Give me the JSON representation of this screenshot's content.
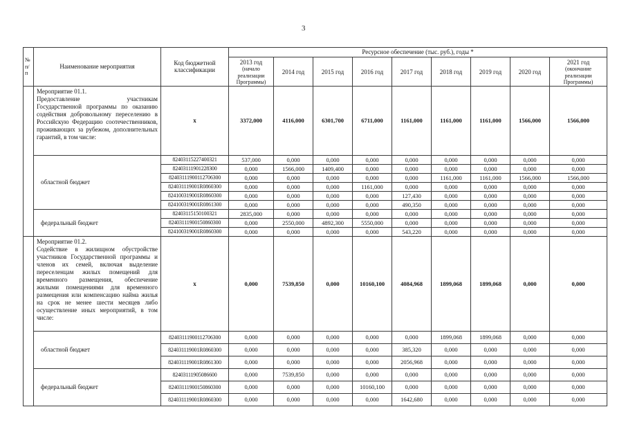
{
  "page": {
    "number": "3"
  },
  "table": {
    "header": {
      "col_num": "№ п/ п",
      "col_name": "Наименование мероприятия",
      "col_code": "Код бюджетной классификации",
      "resource_title": "Ресурсное обеспечение (тыс. руб.), годы *",
      "years": [
        {
          "label": "2013 год",
          "note": "(начало реализации Программы)"
        },
        {
          "label": "2014 год",
          "note": ""
        },
        {
          "label": "2015 год",
          "note": ""
        },
        {
          "label": "2016 год",
          "note": ""
        },
        {
          "label": "2017 год",
          "note": ""
        },
        {
          "label": "2018 год",
          "note": ""
        },
        {
          "label": "2019 год",
          "note": ""
        },
        {
          "label": "2020 год",
          "note": ""
        },
        {
          "label": "2021 год",
          "note": "(окончание реализации Программы)"
        }
      ]
    },
    "sections": [
      {
        "title": "Мероприятие 01.1.",
        "description": "Предоставление участникам Государственной программы по оказанию содействия добровольному переселению в Российскую Федерацию соотечественников, проживающих за рубежом, дополнительных гарантий, в том числе:",
        "code": "х",
        "values": [
          "3372,000",
          "4116,000",
          "6301,700",
          "6711,000",
          "1161,000",
          "1161,000",
          "1161,000",
          "1566,000",
          "1566,000"
        ],
        "groups": [
          {
            "label": "областной бюджет",
            "rows": [
              {
                "code": "82403115227400321",
                "values": [
                  "537,000",
                  "0,000",
                  "0,000",
                  "0,000",
                  "0,000",
                  "0,000",
                  "0,000",
                  "0,000",
                  "0,000"
                ]
              },
              {
                "code": "82403111901228300",
                "values": [
                  "0,000",
                  "1566,000",
                  "1409,400",
                  "0,000",
                  "0,000",
                  "0,000",
                  "0,000",
                  "0,000",
                  "0,000"
                ]
              },
              {
                "code": "82403111900112706300",
                "values": [
                  "0,000",
                  "0,000",
                  "0,000",
                  "0,000",
                  "0,000",
                  "1161,000",
                  "1161,000",
                  "1566,000",
                  "1566,000"
                ]
              },
              {
                "code": "824031119001R0860300",
                "values": [
                  "0,000",
                  "0,000",
                  "0,000",
                  "1161,000",
                  "0,000",
                  "0,000",
                  "0,000",
                  "0,000",
                  "0,000"
                ]
              },
              {
                "code": "824100319001R0860300",
                "values": [
                  "0,000",
                  "0,000",
                  "0,000",
                  "0,000",
                  "127,430",
                  "0,000",
                  "0,000",
                  "0,000",
                  "0,000"
                ]
              },
              {
                "code": "824100319001R0861300",
                "values": [
                  "0,000",
                  "0,000",
                  "0,000",
                  "0,000",
                  "490,350",
                  "0,000",
                  "0,000",
                  "0,000",
                  "0,000"
                ]
              }
            ]
          },
          {
            "label": "федеральный бюджет",
            "rows": [
              {
                "code": "82403115150100321",
                "values": [
                  "2835,000",
                  "0,000",
                  "0,000",
                  "0,000",
                  "0,000",
                  "0,000",
                  "0,000",
                  "0,000",
                  "0,000"
                ]
              },
              {
                "code": "82403111900150860300",
                "values": [
                  "0,000",
                  "2550,000",
                  "4892,300",
                  "5550,000",
                  "0,000",
                  "0,000",
                  "0,000",
                  "0,000",
                  "0,000"
                ]
              },
              {
                "code": "824100319001R0860300",
                "values": [
                  "0,000",
                  "0,000",
                  "0,000",
                  "0,000",
                  "543,220",
                  "0,000",
                  "0,000",
                  "0,000",
                  "0,000"
                ]
              }
            ]
          }
        ]
      },
      {
        "title": "Мероприятие 01.2.",
        "description": "Содействие в жилищном обустройстве участников Государственной программы и членов их семей, включая выделение переселенцам жилых помещений для временного размещения, обеспечение жилыми помещениями для временного размещения или компенсацию найма жилья на срок не менее шести месяцев либо осуществление иных мероприятий, в том числе:",
        "code": "х",
        "values": [
          "0,000",
          "7539,850",
          "0,000",
          "10160,100",
          "4084,968",
          "1899,068",
          "1899,068",
          "0,000",
          "0,000"
        ],
        "groups": [
          {
            "label": "областной бюджет",
            "rows": [
              {
                "code": "82403111900112706300",
                "values": [
                  "0,000",
                  "0,000",
                  "0,000",
                  "0,000",
                  "0,000",
                  "1899,068",
                  "1899,068",
                  "0,000",
                  "0,000"
                ]
              },
              {
                "code": "824031119001R0860300",
                "values": [
                  "0,000",
                  "0,000",
                  "0,000",
                  "0,000",
                  "385,320",
                  "0,000",
                  "0,000",
                  "0,000",
                  "0,000"
                ]
              },
              {
                "code": "824031119001R0861300",
                "values": [
                  "0,000",
                  "0,000",
                  "0,000",
                  "0,000",
                  "2056,968",
                  "0,000",
                  "0,000",
                  "0,000",
                  "0,000"
                ]
              }
            ]
          },
          {
            "label": "федеральный бюджет",
            "rows": [
              {
                "code": "82403111905086600",
                "values": [
                  "0,000",
                  "7539,850",
                  "0,000",
                  "0,000",
                  "0,000",
                  "0,000",
                  "0,000",
                  "0,000",
                  "0,000"
                ]
              },
              {
                "code": "82403111900150860300",
                "values": [
                  "0,000",
                  "0,000",
                  "0,000",
                  "10160,100",
                  "0,000",
                  "0,000",
                  "0,000",
                  "0,000",
                  "0,000"
                ]
              },
              {
                "code": "824031119001R0860300",
                "values": [
                  "0,000",
                  "0,000",
                  "0,000",
                  "0,000",
                  "1642,680",
                  "0,000",
                  "0,000",
                  "0,000",
                  "0,000"
                ]
              }
            ]
          }
        ]
      }
    ]
  }
}
